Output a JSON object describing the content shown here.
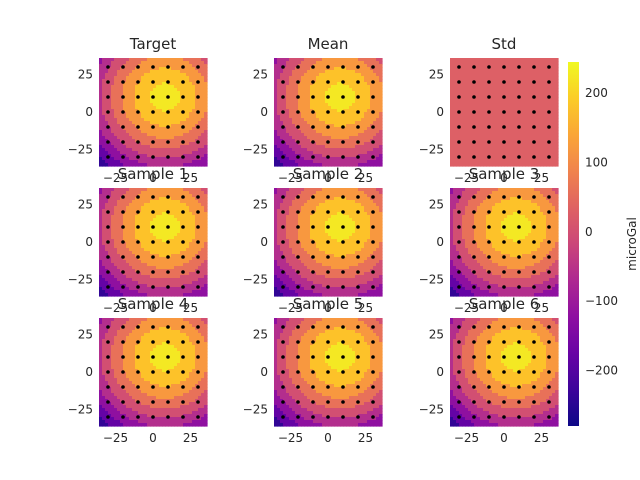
{
  "chart_data": {
    "type": "heatmap",
    "panels": [
      {
        "title": "Target",
        "kind": "field"
      },
      {
        "title": "Mean",
        "kind": "field"
      },
      {
        "title": "Std",
        "kind": "std"
      },
      {
        "title": "Sample 1",
        "kind": "field"
      },
      {
        "title": "Sample 2",
        "kind": "field"
      },
      {
        "title": "Sample 3",
        "kind": "field"
      },
      {
        "title": "Sample 4",
        "kind": "field"
      },
      {
        "title": "Sample 5",
        "kind": "field"
      },
      {
        "title": "Sample 6",
        "kind": "field"
      }
    ],
    "xlim": [
      -36,
      36
    ],
    "ylim": [
      -36,
      36
    ],
    "x_ticks": [
      -25,
      0,
      25
    ],
    "y_ticks": [
      -25,
      0,
      25
    ],
    "grid": false,
    "field_peak": {
      "x": 8,
      "y": 10,
      "value": 240
    },
    "field_min": {
      "x": -36,
      "y": -36,
      "value": -270
    },
    "contour_levels": [
      -270,
      -210,
      -150,
      -90,
      -30,
      30,
      90,
      150,
      210,
      240
    ],
    "std_value": 30,
    "station_points": {
      "x": [
        -30,
        -20,
        -10,
        0,
        10,
        20,
        30
      ],
      "y": [
        -30,
        -20,
        -10,
        0,
        10,
        20,
        30
      ]
    },
    "colorbar": {
      "label": "microGal",
      "colormap": "plasma",
      "range": [
        -280,
        245
      ],
      "ticks": [
        -200,
        -100,
        0,
        100,
        200
      ]
    }
  }
}
